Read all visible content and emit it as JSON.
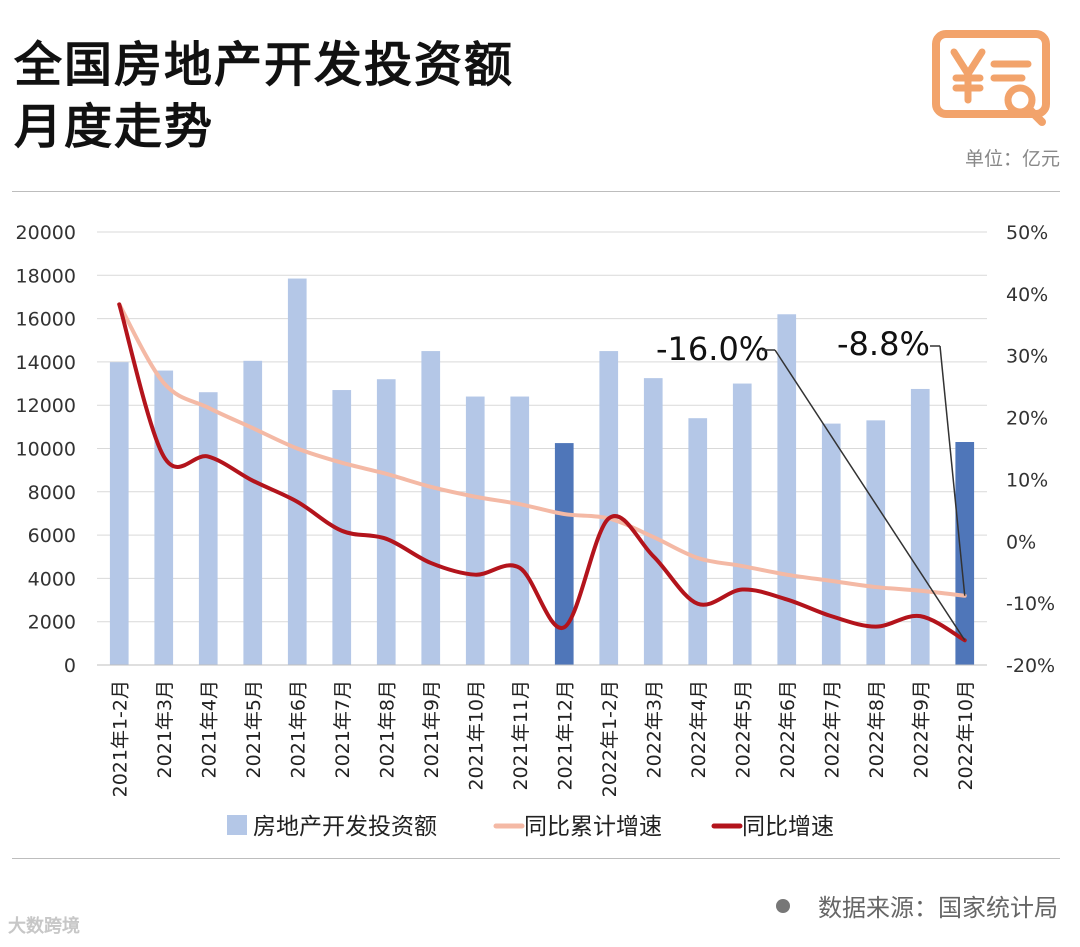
{
  "header": {
    "title_line1": "全国房地产开发投资额",
    "title_line2": "月度走势",
    "unit": "单位：亿元"
  },
  "footer": {
    "source": "数据来源：国家统计局",
    "brand": "大数跨境"
  },
  "colors": {
    "bar": "#b4c7e7",
    "bar_highlight": "#4f76b9",
    "cumulative_line": "#f4b9a5",
    "yoy_line": "#b3141c",
    "logo": "#f2a36b"
  },
  "chart_data": {
    "type": "bar",
    "categories": [
      "2021年1-2月",
      "2021年3月",
      "2021年4月",
      "2021年5月",
      "2021年6月",
      "2021年7月",
      "2021年8月",
      "2021年9月",
      "2021年10月",
      "2021年11月",
      "2021年12月",
      "2022年1-2月",
      "2022年3月",
      "2022年4月",
      "2022年5月",
      "2022年6月",
      "2022年7月",
      "2022年8月",
      "2022年9月",
      "2022年10月"
    ],
    "series": [
      {
        "name": "房地产开发投资额",
        "type": "bar",
        "axis": "left",
        "values": [
          13986,
          13600,
          12600,
          14050,
          17850,
          12700,
          13200,
          14500,
          12400,
          12400,
          10250,
          14500,
          13250,
          11400,
          13000,
          16200,
          11150,
          11300,
          12750,
          10300
        ]
      },
      {
        "name": "同比累计增速",
        "type": "line",
        "axis": "right",
        "values": [
          38.3,
          25.6,
          21.6,
          18.3,
          15.0,
          12.7,
          10.9,
          8.8,
          7.2,
          6.0,
          4.4,
          3.7,
          0.7,
          -2.7,
          -4.0,
          -5.4,
          -6.4,
          -7.4,
          -8.0,
          -8.8
        ]
      },
      {
        "name": "同比增速",
        "type": "line",
        "axis": "right",
        "values": [
          38.3,
          13.7,
          13.7,
          9.8,
          6.4,
          1.7,
          0.4,
          -3.5,
          -5.4,
          -4.3,
          -13.9,
          3.7,
          -2.4,
          -10.1,
          -7.8,
          -9.4,
          -12.1,
          -13.8,
          -12.1,
          -16.0
        ]
      }
    ],
    "highlight_indices": [
      10,
      19
    ],
    "y_left": {
      "min": 0,
      "max": 20000,
      "ticks": [
        "0",
        "2000",
        "4000",
        "6000",
        "8000",
        "10000",
        "12000",
        "14000",
        "16000",
        "18000",
        "20000"
      ]
    },
    "y_right": {
      "min": -20,
      "max": 50,
      "ticks": [
        "-20%",
        "-10%",
        "0%",
        "10%",
        "20%",
        "30%",
        "40%",
        "50%"
      ]
    },
    "grid": true,
    "legend_position": "bottom",
    "annotations": [
      {
        "text": "-16.0%",
        "series": "同比增速",
        "index": 19
      },
      {
        "text": "-8.8%",
        "series": "同比累计增速",
        "index": 19
      }
    ]
  }
}
